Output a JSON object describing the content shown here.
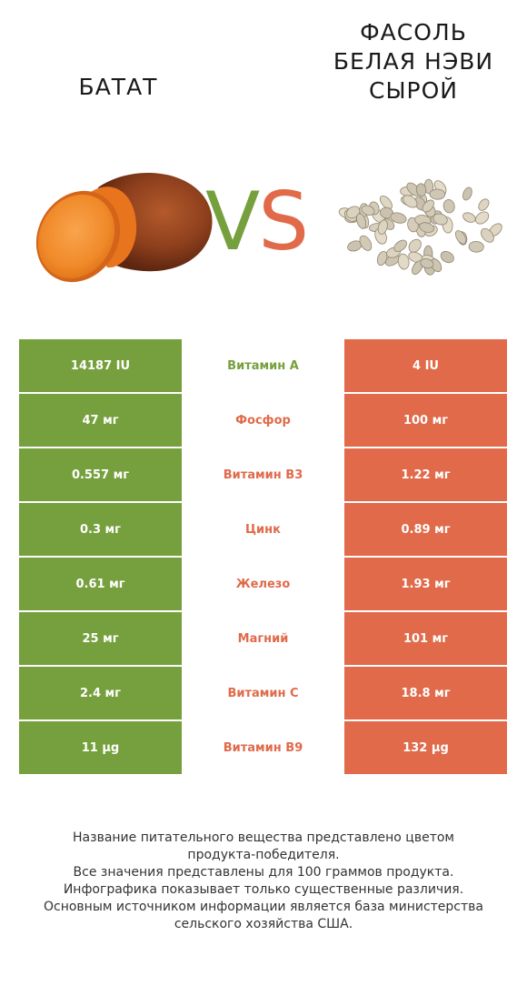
{
  "header": {
    "left_title": "БАТАТ",
    "right_title_lines": [
      "ФАСОЛЬ",
      "БЕЛАЯ НЭВИ",
      "СЫРОЙ"
    ],
    "vs_v": "V",
    "vs_s": "S"
  },
  "colors": {
    "left_winner": "#76a03d",
    "right_winner": "#e06a4a"
  },
  "icons": {
    "left_image": "sweet-potato-image",
    "right_image": "navy-beans-image"
  },
  "rows": [
    {
      "left": "14187 IU",
      "nutrient": "Витамин A",
      "right": "4 IU",
      "winner": "left"
    },
    {
      "left": "47 мг",
      "nutrient": "Фосфор",
      "right": "100 мг",
      "winner": "right"
    },
    {
      "left": "0.557 мг",
      "nutrient": "Витамин B3",
      "right": "1.22 мг",
      "winner": "right"
    },
    {
      "left": "0.3 мг",
      "nutrient": "Цинк",
      "right": "0.89 мг",
      "winner": "right"
    },
    {
      "left": "0.61 мг",
      "nutrient": "Железо",
      "right": "1.93 мг",
      "winner": "right"
    },
    {
      "left": "25 мг",
      "nutrient": "Магний",
      "right": "101 мг",
      "winner": "right"
    },
    {
      "left": "2.4 мг",
      "nutrient": "Витамин C",
      "right": "18.8 мг",
      "winner": "right"
    },
    {
      "left": "11 µg",
      "nutrient": "Витамин B9",
      "right": "132 µg",
      "winner": "right"
    }
  ],
  "footer": {
    "lines": [
      "Название питательного вещества представлено цветом",
      "продукта-победителя.",
      "Все значения представлены для 100 граммов продукта.",
      "Инфографика показывает только существенные различия.",
      "Основным источником информации является база министерства",
      "сельского хозяйства США."
    ]
  }
}
